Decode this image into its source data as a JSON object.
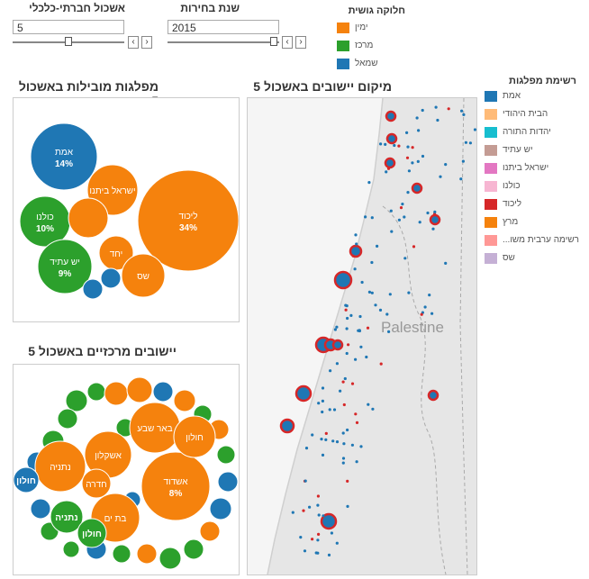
{
  "filters": {
    "socio": {
      "label": "אשכול חברתי-כלכלי",
      "value": "5",
      "slider_fraction": 0.5
    },
    "year": {
      "label": "שנת בחירות",
      "value": "2015",
      "slider_fraction": 0.95
    },
    "prev_arrow": "‹",
    "next_arrow": "›"
  },
  "bloc_legend": {
    "title": "חלוקה גושית",
    "items": [
      {
        "label": "ימין",
        "color": "#f5820d"
      },
      {
        "label": "מרכז",
        "color": "#2ca02c"
      },
      {
        "label": "שמאל",
        "color": "#1f77b4"
      }
    ]
  },
  "party_legend": {
    "title": "רשימת מפלגות",
    "items": [
      {
        "label": "אמת",
        "color": "#1f77b4"
      },
      {
        "label": "הבית היהודי",
        "color": "#ffbb78"
      },
      {
        "label": "יהדות התורה",
        "color": "#17becf"
      },
      {
        "label": "יש עתיד",
        "color": "#c49c94"
      },
      {
        "label": "ישראל ביתנו",
        "color": "#e377c2"
      },
      {
        "label": "כולנו",
        "color": "#f7b6d2"
      },
      {
        "label": "ליכוד",
        "color": "#d62728"
      },
      {
        "label": "מרץ",
        "color": "#f5820d"
      },
      {
        "label": "רשימה ערבית משו...",
        "color": "#ff9896"
      },
      {
        "label": "שס",
        "color": "#c5b0d5"
      }
    ]
  },
  "panels": {
    "parties_title": "מפלגות מובילות באשכול 5",
    "map_title": "מיקום יישובים באשכול 5",
    "towns_title": "יישובים מרכזיים באשכול 5",
    "map_label": "Palestine"
  },
  "parties_bubbles": [
    {
      "name": "ליכוד",
      "pct": "34%",
      "color": "#f5820d"
    },
    {
      "name": "אמת",
      "pct": "14%",
      "color": "#1f77b4"
    },
    {
      "name": "ישראל ביתנו",
      "pct": "",
      "color": "#f5820d"
    },
    {
      "name": "כולנו",
      "pct": "10%",
      "color": "#2ca02c"
    },
    {
      "name": "יש עתיד",
      "pct": "9%",
      "color": "#2ca02c"
    },
    {
      "name": "יחד",
      "pct": "",
      "color": "#f5820d"
    },
    {
      "name": "שס",
      "pct": "",
      "color": "#f5820d"
    },
    {
      "name": "",
      "pct": "",
      "color": "#f5820d"
    },
    {
      "name": "",
      "pct": "",
      "color": "#1f77b4"
    },
    {
      "name": "",
      "pct": "",
      "color": "#1f77b4"
    }
  ],
  "towns_bubbles": [
    {
      "name": "באר שבע",
      "pct": "",
      "color": "#f5820d"
    },
    {
      "name": "אשדוד",
      "pct": "8%",
      "color": "#f5820d"
    },
    {
      "name": "נתניה",
      "pct": "",
      "color": "#f5820d"
    },
    {
      "name": "אשקלון",
      "pct": "",
      "color": "#f5820d"
    },
    {
      "name": "חולון",
      "pct": "",
      "color": "#f5820d"
    },
    {
      "name": "בת ים",
      "pct": "",
      "color": "#f5820d"
    },
    {
      "name": "חדרה",
      "pct": "",
      "color": "#f5820d"
    },
    {
      "name": "חולון",
      "pct": "",
      "color": "#1f77b4"
    },
    {
      "name": "נתניה",
      "pct": "",
      "color": "#2ca02c"
    },
    {
      "name": "חולון",
      "pct": "",
      "color": "#2ca02c"
    }
  ]
}
